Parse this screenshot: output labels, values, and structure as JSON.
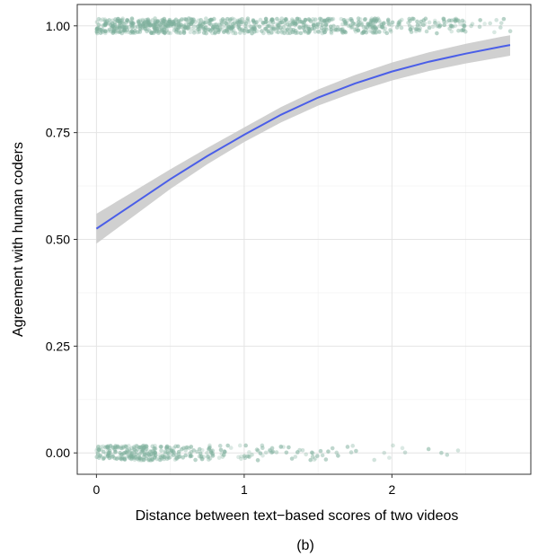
{
  "caption": "(b)",
  "chart_data": {
    "type": "scatter",
    "title": "",
    "xlabel": "Distance between text−based scores of two videos",
    "ylabel": "Agreement with human coders",
    "xlim": [
      -0.13,
      2.94
    ],
    "ylim": [
      -0.05,
      1.05
    ],
    "x_ticks": [
      0,
      1,
      2
    ],
    "x_tick_labels": [
      "0",
      "1",
      "2"
    ],
    "y_ticks": [
      0,
      0.25,
      0.5,
      0.75,
      1
    ],
    "y_tick_labels": [
      "0.00",
      "0.25",
      "0.50",
      "0.75",
      "1.00"
    ],
    "grid": true,
    "point_color": "#7fb09d",
    "line_color": "#4a5ee8",
    "band_color": "#c8c8c8",
    "fitted_curve": {
      "x": [
        0,
        0.25,
        0.5,
        0.75,
        1.0,
        1.25,
        1.5,
        1.75,
        2.0,
        2.25,
        2.5,
        2.75,
        2.8
      ],
      "y": [
        0.525,
        0.583,
        0.641,
        0.695,
        0.745,
        0.792,
        0.832,
        0.865,
        0.893,
        0.916,
        0.935,
        0.952,
        0.955
      ],
      "lower": [
        0.49,
        0.554,
        0.618,
        0.676,
        0.728,
        0.774,
        0.813,
        0.845,
        0.872,
        0.894,
        0.912,
        0.927,
        0.93
      ],
      "upper": [
        0.56,
        0.612,
        0.664,
        0.714,
        0.762,
        0.81,
        0.851,
        0.885,
        0.914,
        0.938,
        0.958,
        0.975,
        0.978
      ]
    },
    "jittered_points": [
      {
        "y": 1,
        "x_density": [
          {
            "x0": 0.0,
            "x1": 0.5,
            "count": 260
          },
          {
            "x0": 0.5,
            "x1": 1.0,
            "count": 200
          },
          {
            "x0": 1.0,
            "x1": 1.5,
            "count": 170
          },
          {
            "x0": 1.5,
            "x1": 2.0,
            "count": 150
          },
          {
            "x0": 2.0,
            "x1": 2.5,
            "count": 80
          },
          {
            "x0": 2.5,
            "x1": 2.85,
            "count": 12
          }
        ]
      },
      {
        "y": 0,
        "x_density": [
          {
            "x0": 0.0,
            "x1": 0.5,
            "count": 200
          },
          {
            "x0": 0.5,
            "x1": 0.8,
            "count": 60
          },
          {
            "x0": 0.8,
            "x1": 1.2,
            "count": 35
          },
          {
            "x0": 1.2,
            "x1": 1.6,
            "count": 25
          },
          {
            "x0": 1.6,
            "x1": 2.1,
            "count": 12
          },
          {
            "x0": 2.1,
            "x1": 2.5,
            "count": 4
          }
        ]
      }
    ]
  }
}
